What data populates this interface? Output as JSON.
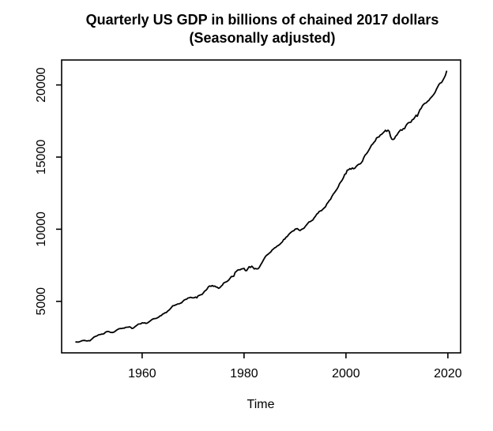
{
  "figure": {
    "title_line1": "Quarterly US GDP in billions of chained 2017 dollars",
    "title_line2": "(Seasonally adjusted)",
    "background_color": "#ffffff",
    "line_color": "#000000"
  },
  "chart_data": {
    "type": "line",
    "title": "Quarterly US GDP in billions of chained 2017 dollars (Seasonally adjusted)",
    "xlabel": "Time",
    "ylabel": "",
    "grid": false,
    "legend_position": "none",
    "x_ticks": [
      1960,
      1980,
      2000,
      2020
    ],
    "y_ticks": [
      5000,
      10000,
      15000,
      20000
    ],
    "xlim": [
      1944.2,
      2022.5
    ],
    "ylim": [
      1430,
      21730
    ],
    "series": [
      {
        "name": "Quarterly US GDP",
        "x_start": 1947.0,
        "x_step": 0.25,
        "values": [
          2183,
          2177,
          2172,
          2206,
          2240,
          2278,
          2291,
          2294,
          2263,
          2255,
          2280,
          2261,
          2350,
          2420,
          2513,
          2555,
          2590,
          2635,
          2690,
          2696,
          2725,
          2730,
          2750,
          2843,
          2895,
          2915,
          2900,
          2855,
          2840,
          2843,
          2875,
          2932,
          3013,
          3062,
          3103,
          3121,
          3116,
          3142,
          3140,
          3190,
          3210,
          3207,
          3237,
          3204,
          3121,
          3140,
          3212,
          3287,
          3349,
          3428,
          3430,
          3443,
          3517,
          3498,
          3515,
          3470,
          3494,
          3560,
          3617,
          3691,
          3758,
          3792,
          3805,
          3816,
          3862,
          3911,
          3989,
          4012,
          4104,
          4152,
          4208,
          4221,
          4325,
          4385,
          4471,
          4580,
          4689,
          4705,
          4742,
          4780,
          4823,
          4826,
          4866,
          4903,
          5004,
          5090,
          5128,
          5149,
          5231,
          5247,
          5280,
          5255,
          5246,
          5254,
          5300,
          5243,
          5388,
          5418,
          5459,
          5472,
          5575,
          5705,
          5760,
          5857,
          6004,
          6070,
          6038,
          6095,
          6043,
          6058,
          6001,
          5977,
          5905,
          5949,
          6050,
          6131,
          6270,
          6317,
          6351,
          6398,
          6475,
          6601,
          6719,
          6720,
          6745,
          7010,
          7078,
          7172,
          7184,
          7191,
          7245,
          7262,
          7284,
          7135,
          7127,
          7261,
          7403,
          7349,
          7436,
          7357,
          7244,
          7280,
          7253,
          7259,
          7355,
          7524,
          7674,
          7838,
          7993,
          8131,
          8210,
          8277,
          8354,
          8429,
          8561,
          8626,
          8706,
          8746,
          8831,
          8877,
          8941,
          9038,
          9117,
          9274,
          9322,
          9445,
          9501,
          9626,
          9720,
          9796,
          9868,
          9887,
          9995,
          10031,
          10038,
          9948,
          9903,
          9980,
          10028,
          10064,
          10187,
          10296,
          10399,
          10510,
          10528,
          10590,
          10642,
          10785,
          10890,
          11037,
          11103,
          11230,
          11268,
          11302,
          11400,
          11480,
          11562,
          11760,
          11863,
          11995,
          12077,
          12276,
          12433,
          12540,
          12665,
          12782,
          12945,
          13162,
          13280,
          13395,
          13571,
          13800,
          13847,
          14098,
          14113,
          14200,
          14155,
          14245,
          14190,
          14228,
          14351,
          14440,
          14503,
          14518,
          14594,
          14721,
          14966,
          15139,
          15218,
          15337,
          15486,
          15645,
          15820,
          15902,
          16030,
          16120,
          16330,
          16373,
          16398,
          16533,
          16573,
          16665,
          16758,
          16859,
          16783,
          16866,
          16780,
          16426,
          16243,
          16215,
          16272,
          16449,
          16525,
          16680,
          16802,
          16893,
          16852,
          16970,
          16970,
          17165,
          17300,
          17380,
          17400,
          17420,
          17580,
          17620,
          17750,
          17900,
          17830,
          18060,
          18280,
          18370,
          18550,
          18660,
          18730,
          18760,
          18865,
          18920,
          19050,
          19150,
          19240,
          19350,
          19500,
          19700,
          19870,
          20040,
          20130,
          20160,
          20310,
          20470,
          20660,
          20950
        ]
      }
    ]
  }
}
